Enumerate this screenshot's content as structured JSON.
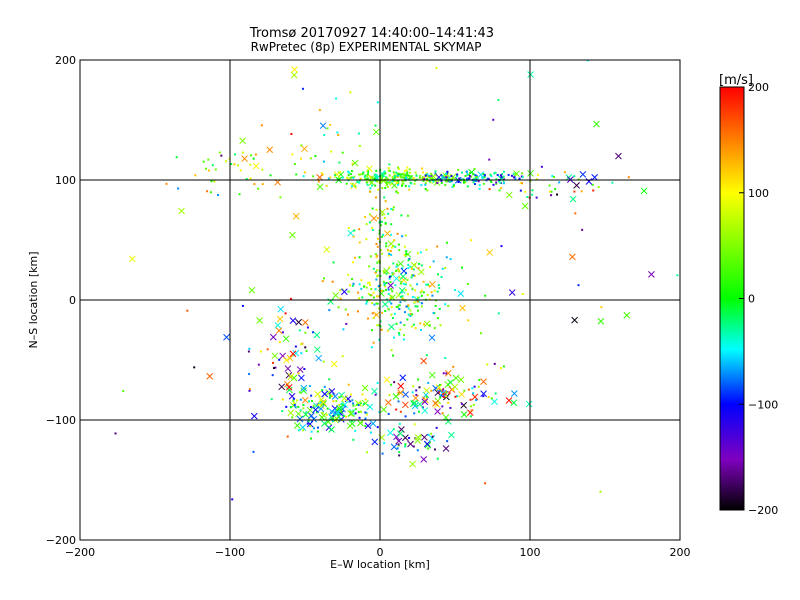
{
  "chart_data": [
    {
      "type": "scatter",
      "title": "Tromsø 20170927 14:40:00–14:41:43",
      "subtitle": "RwPretec (8p) EXPERIMENTAL SKYMAP",
      "xlabel": "E–W location [km]",
      "ylabel": "N–S location [km]",
      "xlim": [
        -200,
        200
      ],
      "ylim": [
        -200,
        200
      ],
      "xticks": [
        -200,
        -100,
        0,
        100,
        200
      ],
      "yticks": [
        -200,
        -100,
        0,
        100,
        200
      ],
      "grid": true,
      "marker_legend": "small dots = small markers, crosses = large markers, colored by velocity",
      "colorbar": {
        "label": "[m/s]",
        "min": -200,
        "max": 200,
        "ticks": [
          200,
          100,
          0,
          -100,
          -200
        ],
        "colors": [
          "#ff0000",
          "#ffff00",
          "#00ff00",
          "#00ffff",
          "#0000ff",
          "#7f00bf",
          "#000000"
        ]
      },
      "clusters": [
        {
          "cx": 10,
          "cy": 101,
          "sx": 22,
          "sy": 4,
          "n": 260,
          "vmin": -60,
          "vmax": 120,
          "cross": 0.08
        },
        {
          "cx": 60,
          "cy": 102,
          "sx": 18,
          "sy": 3,
          "n": 120,
          "vmin": -150,
          "vmax": 60,
          "cross": 0.1
        },
        {
          "cx": 110,
          "cy": 96,
          "sx": 25,
          "sy": 8,
          "n": 50,
          "vmin": -200,
          "vmax": 200,
          "cross": 0.25
        },
        {
          "cx": 10,
          "cy": 5,
          "sx": 18,
          "sy": 22,
          "n": 280,
          "vmin": -80,
          "vmax": 150,
          "cross": 0.06
        },
        {
          "cx": 0,
          "cy": 50,
          "sx": 10,
          "sy": 25,
          "n": 80,
          "vmin": -50,
          "vmax": 150,
          "cross": 0.1
        },
        {
          "cx": -30,
          "cy": -90,
          "sx": 18,
          "sy": 10,
          "n": 180,
          "vmin": -120,
          "vmax": 120,
          "cross": 0.35
        },
        {
          "cx": 40,
          "cy": -80,
          "sx": 20,
          "sy": 10,
          "n": 110,
          "vmin": -200,
          "vmax": 200,
          "cross": 0.4
        },
        {
          "cx": 20,
          "cy": -120,
          "sx": 15,
          "sy": 6,
          "n": 40,
          "vmin": -180,
          "vmax": 80,
          "cross": 0.4
        },
        {
          "cx": -60,
          "cy": -40,
          "sx": 15,
          "sy": 20,
          "n": 60,
          "vmin": -200,
          "vmax": 200,
          "cross": 0.45
        },
        {
          "cx": -95,
          "cy": 110,
          "sx": 25,
          "sy": 10,
          "n": 40,
          "vmin": -20,
          "vmax": 160,
          "cross": 0.1
        },
        {
          "cx": -40,
          "cy": 130,
          "sx": 20,
          "sy": 25,
          "n": 35,
          "vmin": -100,
          "vmax": 200,
          "cross": 0.2
        },
        {
          "cx": 0,
          "cy": 0,
          "sx": 110,
          "sy": 110,
          "n": 90,
          "vmin": -200,
          "vmax": 200,
          "cross": 0.4
        }
      ]
    }
  ]
}
